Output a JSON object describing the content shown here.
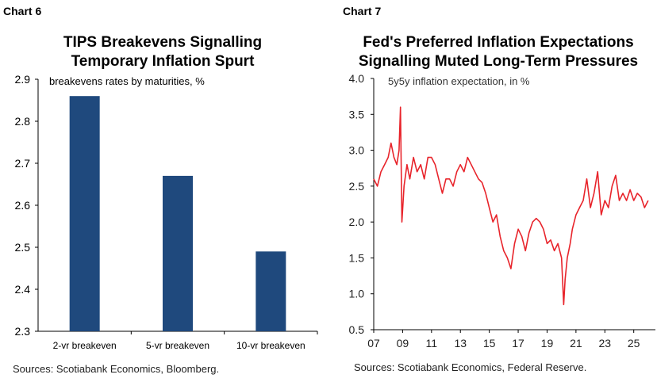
{
  "chart_data": [
    {
      "panel_label": "Chart 6",
      "type": "bar",
      "title_lines": [
        "TIPS Breakevens Signalling",
        "Temporary Inflation Spurt"
      ],
      "subtitle": "breakevens rates by maturities, %",
      "categories": [
        "2-yr breakeven",
        "5-yr breakeven",
        "10-yr breakeven"
      ],
      "values": [
        2.86,
        2.67,
        2.49
      ],
      "ylim": [
        2.3,
        2.9
      ],
      "yticks": [
        "2.9",
        "2.8",
        "2.7",
        "2.6",
        "2.5",
        "2.4",
        "2.3"
      ],
      "bar_color": "#1f497d",
      "source": "Sources: Scotiabank Economics, Bloomberg."
    },
    {
      "panel_label": "Chart 7",
      "type": "line",
      "title_lines": [
        "Fed's Preferred Inflation Expectations",
        "Signalling Muted Long-Term Pressures"
      ],
      "subtitle": "5y5y inflation expectation, in %",
      "ylim": [
        0.5,
        4.0
      ],
      "yticks": [
        "4.0",
        "3.5",
        "3.0",
        "2.5",
        "2.0",
        "1.5",
        "1.0",
        "0.5"
      ],
      "xticks": [
        "07",
        "09",
        "11",
        "13",
        "15",
        "17",
        "19",
        "21",
        "23",
        "25"
      ],
      "line_color": "#e8242b",
      "series": [
        {
          "x": [
            2007.0,
            2007.25,
            2007.5,
            2007.75,
            2008.0,
            2008.2,
            2008.4,
            2008.6,
            2008.75,
            2008.85,
            2008.95,
            2009.1,
            2009.3,
            2009.5,
            2009.75,
            2010.0,
            2010.25,
            2010.5,
            2010.75,
            2011.0,
            2011.25,
            2011.5,
            2011.75,
            2012.0,
            2012.25,
            2012.5,
            2012.75,
            2013.0,
            2013.25,
            2013.5,
            2013.75,
            2014.0,
            2014.25,
            2014.5,
            2014.75,
            2015.0,
            2015.25,
            2015.5,
            2015.75,
            2016.0,
            2016.25,
            2016.5,
            2016.75,
            2017.0,
            2017.25,
            2017.5,
            2017.75,
            2018.0,
            2018.25,
            2018.5,
            2018.75,
            2019.0,
            2019.25,
            2019.5,
            2019.75,
            2020.0,
            2020.15,
            2020.25,
            2020.4,
            2020.6,
            2020.75,
            2021.0,
            2021.25,
            2021.5,
            2021.75,
            2022.0,
            2022.25,
            2022.5,
            2022.75,
            2023.0,
            2023.25,
            2023.5,
            2023.75,
            2024.0,
            2024.25,
            2024.5,
            2024.75,
            2025.0,
            2025.25,
            2025.5,
            2025.75,
            2026.0
          ],
          "values": [
            2.6,
            2.5,
            2.7,
            2.8,
            2.9,
            3.1,
            2.9,
            2.8,
            3.0,
            3.6,
            2.0,
            2.5,
            2.8,
            2.6,
            2.9,
            2.7,
            2.8,
            2.6,
            2.9,
            2.9,
            2.8,
            2.6,
            2.4,
            2.6,
            2.6,
            2.5,
            2.7,
            2.8,
            2.7,
            2.9,
            2.8,
            2.7,
            2.6,
            2.55,
            2.4,
            2.2,
            2.0,
            2.1,
            1.8,
            1.6,
            1.5,
            1.35,
            1.7,
            1.9,
            1.8,
            1.6,
            1.85,
            2.0,
            2.05,
            2.0,
            1.9,
            1.7,
            1.75,
            1.6,
            1.7,
            1.5,
            0.85,
            1.2,
            1.5,
            1.7,
            1.9,
            2.1,
            2.2,
            2.3,
            2.6,
            2.2,
            2.4,
            2.7,
            2.1,
            2.3,
            2.2,
            2.5,
            2.65,
            2.3,
            2.4,
            2.3,
            2.45,
            2.3,
            2.4,
            2.35,
            2.2,
            2.3
          ]
        }
      ],
      "source": "Sources: Scotiabank Economics, Federal Reserve."
    }
  ]
}
